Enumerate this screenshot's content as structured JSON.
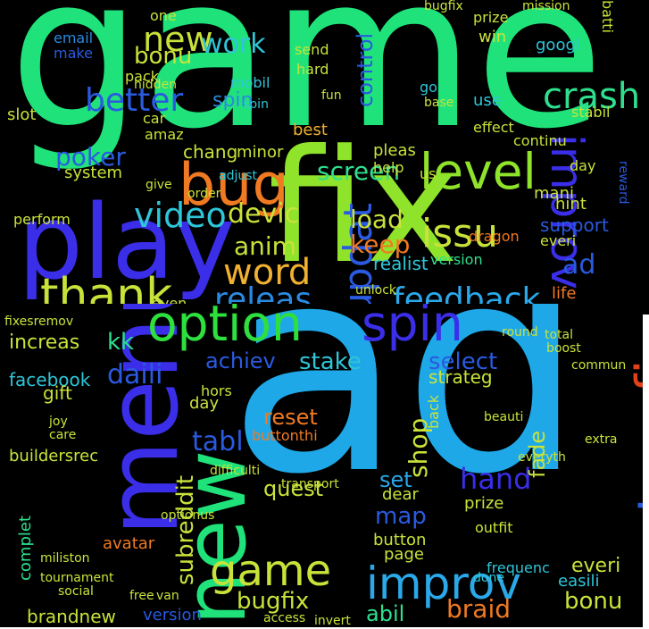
{
  "top_words": [
    {
      "text": "game",
      "color": "#1fe37a"
    },
    {
      "text": "fix",
      "color": "#8fe32a"
    },
    {
      "text": "play",
      "color": "#3a2ee8"
    },
    {
      "text": "level",
      "color": "#8fe32a"
    },
    {
      "text": "bug",
      "color": "#f07a22"
    },
    {
      "text": "thank",
      "color": "#c9e23a"
    },
    {
      "text": "new",
      "color": "#c9e23a"
    },
    {
      "text": "work",
      "color": "#2ec6d8"
    },
    {
      "text": "better",
      "color": "#2a5ae0"
    },
    {
      "text": "crash",
      "color": "#2ee08e"
    },
    {
      "text": "improv",
      "color": "#3a2ee8"
    },
    {
      "text": "updat",
      "color": "#2a5ae0"
    },
    {
      "text": "video",
      "color": "#2ec6d8"
    },
    {
      "text": "devic",
      "color": "#c9e23a"
    },
    {
      "text": "anim",
      "color": "#c9e23a"
    },
    {
      "text": "word",
      "color": "#f0b030"
    },
    {
      "text": "releas",
      "color": "#2a8ae0"
    },
    {
      "text": "feedback",
      "color": "#2aa8e8"
    },
    {
      "text": "issu",
      "color": "#c9e23a"
    },
    {
      "text": "keep",
      "color": "#f07a22"
    },
    {
      "text": "load",
      "color": "#c9e23a"
    },
    {
      "text": "screen",
      "color": "#2ee08e"
    },
    {
      "text": "poker",
      "color": "#2a5ae0"
    },
    {
      "text": "control",
      "color": "#2a5ae0"
    },
    {
      "text": "ad",
      "color": "#2a5ae0"
    },
    {
      "text": "bonu",
      "color": "#c9e23a"
    },
    {
      "text": "spin",
      "color": "#2a8ae0"
    },
    {
      "text": "chang",
      "color": "#c9e23a"
    },
    {
      "text": "minor",
      "color": "#c9e23a"
    },
    {
      "text": "system",
      "color": "#c9e23a"
    },
    {
      "text": "realist",
      "color": "#2ec6d8"
    },
    {
      "text": "version",
      "color": "#2ee08e"
    },
    {
      "text": "support",
      "color": "#2a5ae0"
    },
    {
      "text": "hint",
      "color": "#c9e23a"
    },
    {
      "text": "email",
      "color": "#2a8ae0"
    },
    {
      "text": "make",
      "color": "#2a5ae0"
    },
    {
      "text": "pack",
      "color": "#c9e23a"
    },
    {
      "text": "slot",
      "color": "#c9e23a"
    },
    {
      "text": "car",
      "color": "#c9e23a"
    },
    {
      "text": "amaz",
      "color": "#c9e23a"
    },
    {
      "text": "mobil",
      "color": "#2ec6d8"
    },
    {
      "text": "best",
      "color": "#f0b030"
    },
    {
      "text": "hard",
      "color": "#c9e23a"
    },
    {
      "text": "send",
      "color": "#c9e23a"
    },
    {
      "text": "prize",
      "color": "#c9e23a"
    },
    {
      "text": "win",
      "color": "#c9e23a"
    },
    {
      "text": "googl",
      "color": "#2ec6d8"
    },
    {
      "text": "batti",
      "color": "#c9e23a"
    },
    {
      "text": "effect",
      "color": "#c9e23a"
    },
    {
      "text": "stabil",
      "color": "#c9e23a"
    },
    {
      "text": "continu",
      "color": "#c9e23a"
    },
    {
      "text": "day",
      "color": "#c9e23a"
    },
    {
      "text": "use",
      "color": "#2ec6d8"
    },
    {
      "text": "pleas",
      "color": "#c9e23a"
    },
    {
      "text": "help",
      "color": "#c9e23a"
    },
    {
      "text": "us",
      "color": "#c9e23a"
    },
    {
      "text": "dragon",
      "color": "#f07a22"
    },
    {
      "text": "mani",
      "color": "#c9e23a"
    },
    {
      "text": "everi",
      "color": "#c9e23a"
    },
    {
      "text": "unlock",
      "color": "#c9e23a"
    },
    {
      "text": "even",
      "color": "#c9e23a"
    },
    {
      "text": "perform",
      "color": "#c9e23a"
    },
    {
      "text": "hidden",
      "color": "#c9e23a"
    },
    {
      "text": "adjust",
      "color": "#2ec6d8"
    },
    {
      "text": "give",
      "color": "#c9e23a"
    },
    {
      "text": "order",
      "color": "#c9e23a"
    },
    {
      "text": "one",
      "color": "#c9e23a"
    },
    {
      "text": "bugfix",
      "color": "#c9e23a"
    },
    {
      "text": "mission",
      "color": "#c9e23a"
    },
    {
      "text": "life",
      "color": "#f07a22"
    },
    {
      "text": "reward",
      "color": "#2a5ae0"
    },
    {
      "text": "go",
      "color": "#2ec6d8"
    },
    {
      "text": "spin",
      "color": "#2ec6d8"
    },
    {
      "text": "fun",
      "color": "#c9e23a"
    },
    {
      "text": "base",
      "color": "#c9e23a"
    }
  ],
  "bottom_words": [
    {
      "text": "ad",
      "color": "#1ea8e8"
    },
    {
      "text": "menu",
      "color": "#3a2ee8"
    },
    {
      "text": "new",
      "color": "#1fe37a"
    },
    {
      "text": "option",
      "color": "#2ee03e"
    },
    {
      "text": "spin",
      "color": "#3a2ee8"
    },
    {
      "text": "show",
      "color": "#2a5ae0"
    },
    {
      "text": "fix",
      "color": "#e0401a"
    },
    {
      "text": "game",
      "color": "#c9e23a"
    },
    {
      "text": "improv",
      "color": "#2aa8e8"
    },
    {
      "text": "daili",
      "color": "#2a5ae0"
    },
    {
      "text": "achiev",
      "color": "#2a5ae0"
    },
    {
      "text": "stake",
      "color": "#2ec6d8"
    },
    {
      "text": "select",
      "color": "#2a5ae0"
    },
    {
      "text": "hand",
      "color": "#3a2ee8"
    },
    {
      "text": "shop",
      "color": "#c9e23a"
    },
    {
      "text": "fade",
      "color": "#c9e23a"
    },
    {
      "text": "tabl",
      "color": "#2a5ae0"
    },
    {
      "text": "reset",
      "color": "#f07a22"
    },
    {
      "text": "set",
      "color": "#2aa8e8"
    },
    {
      "text": "map",
      "color": "#2a5ae0"
    },
    {
      "text": "quest",
      "color": "#c9e23a"
    },
    {
      "text": "subreddit",
      "color": "#c9e23a"
    },
    {
      "text": "bugfix",
      "color": "#c9e23a"
    },
    {
      "text": "braid",
      "color": "#f07a22"
    },
    {
      "text": "abil",
      "color": "#2ee08e"
    },
    {
      "text": "bonu",
      "color": "#c9e23a"
    },
    {
      "text": "everi",
      "color": "#c9e23a"
    },
    {
      "text": "easili",
      "color": "#2ec6d8"
    },
    {
      "text": "brandnew",
      "color": "#c9e23a"
    },
    {
      "text": "version",
      "color": "#2a5ae0"
    },
    {
      "text": "facebook",
      "color": "#2ec6d8"
    },
    {
      "text": "kk",
      "color": "#2ee08e"
    },
    {
      "text": "increas",
      "color": "#c9e23a"
    },
    {
      "text": "gift",
      "color": "#c9e23a"
    },
    {
      "text": "buildersrec",
      "color": "#c9e23a"
    },
    {
      "text": "day",
      "color": "#c9e23a"
    },
    {
      "text": "hors",
      "color": "#c9e23a"
    },
    {
      "text": "buttonthi",
      "color": "#f07a22"
    },
    {
      "text": "strateg",
      "color": "#c9e23a"
    },
    {
      "text": "back",
      "color": "#c9e23a"
    },
    {
      "text": "prize",
      "color": "#c9e23a"
    },
    {
      "text": "button",
      "color": "#c9e23a"
    },
    {
      "text": "page",
      "color": "#c9e23a"
    },
    {
      "text": "dear",
      "color": "#c9e23a"
    },
    {
      "text": "transport",
      "color": "#c9e23a"
    },
    {
      "text": "avatar",
      "color": "#f07a22"
    },
    {
      "text": "tournament",
      "color": "#c9e23a"
    },
    {
      "text": "complet",
      "color": "#2ee08e"
    },
    {
      "text": "miliston",
      "color": "#c9e23a"
    },
    {
      "text": "social",
      "color": "#c9e23a"
    },
    {
      "text": "free",
      "color": "#c9e23a"
    },
    {
      "text": "van",
      "color": "#c9e23a"
    },
    {
      "text": "difficulti",
      "color": "#c9e23a"
    },
    {
      "text": "fixesremov",
      "color": "#c9e23a"
    },
    {
      "text": "frequenc",
      "color": "#2ec6d8"
    },
    {
      "text": "done",
      "color": "#2ec6d8"
    },
    {
      "text": "outfit",
      "color": "#c9e23a"
    },
    {
      "text": "boost",
      "color": "#c9e23a"
    },
    {
      "text": "round",
      "color": "#c9e23a"
    },
    {
      "text": "total",
      "color": "#c9e23a"
    },
    {
      "text": "commun",
      "color": "#c9e23a"
    },
    {
      "text": "beauti",
      "color": "#c9e23a"
    },
    {
      "text": "everyth",
      "color": "#c9e23a"
    },
    {
      "text": "extra",
      "color": "#c9e23a"
    },
    {
      "text": "optionus",
      "color": "#c9e23a"
    },
    {
      "text": "invert",
      "color": "#c9e23a"
    },
    {
      "text": "access",
      "color": "#c9e23a"
    },
    {
      "text": "joy",
      "color": "#c9e23a"
    },
    {
      "text": "care",
      "color": "#c9e23a"
    }
  ]
}
